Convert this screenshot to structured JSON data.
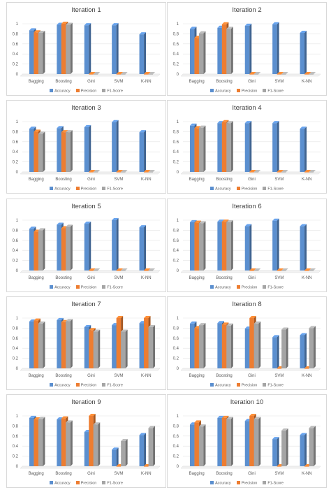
{
  "colors": {
    "Accuracy": "#5b8fcf",
    "Precision": "#ed7d31",
    "F1-Score": "#a5a5a5"
  },
  "chart_data": [
    {
      "type": "bar",
      "title": "Iteration 1",
      "categories": [
        "Bagging",
        "Boosting",
        "Gini",
        "SVM",
        "K-NN"
      ],
      "ylim": [
        0,
        1
      ],
      "yticks": [
        "0",
        "0.2",
        "0.4",
        "0.6",
        "0.8",
        "1"
      ],
      "legend_position": "bottom",
      "series": [
        {
          "name": "Accuracy",
          "values": [
            0.87,
            0.98,
            0.97,
            0.97,
            0.79
          ]
        },
        {
          "name": "Precision",
          "values": [
            0.83,
            1.0,
            0,
            0,
            0
          ]
        },
        {
          "name": "F1-Score",
          "values": [
            0.82,
            0.98,
            0,
            0,
            0
          ]
        }
      ]
    },
    {
      "type": "bar",
      "title": "Iteration 2",
      "categories": [
        "Bagging",
        "Boosting",
        "Gini",
        "SVM",
        "K-NN"
      ],
      "ylim": [
        0,
        1
      ],
      "yticks": [
        "0",
        "0.2",
        "0.4",
        "0.6",
        "0.8",
        "1"
      ],
      "legend_position": "bottom",
      "series": [
        {
          "name": "Accuracy",
          "values": [
            0.9,
            0.92,
            0.96,
            0.99,
            0.82
          ]
        },
        {
          "name": "Precision",
          "values": [
            0.72,
            0.99,
            0,
            0,
            0
          ]
        },
        {
          "name": "F1-Score",
          "values": [
            0.81,
            0.9,
            0,
            0,
            0
          ]
        }
      ]
    },
    {
      "type": "bar",
      "title": "Iteration 3",
      "categories": [
        "Bagging",
        "Boosting",
        "Gini",
        "SVM",
        "K-NN"
      ],
      "ylim": [
        0,
        1
      ],
      "yticks": [
        "0",
        "0.2",
        "0.4",
        "0.6",
        "0.8",
        "1"
      ],
      "legend_position": "bottom",
      "series": [
        {
          "name": "Accuracy",
          "values": [
            0.86,
            0.87,
            0.89,
            0.99,
            0.79
          ]
        },
        {
          "name": "Precision",
          "values": [
            0.8,
            0.79,
            0,
            0,
            0
          ]
        },
        {
          "name": "F1-Score",
          "values": [
            0.76,
            0.79,
            0,
            0,
            0
          ]
        }
      ]
    },
    {
      "type": "bar",
      "title": "Iteration 4",
      "categories": [
        "Bagging",
        "Boosting",
        "Gini",
        "SVM",
        "K-NN"
      ],
      "ylim": [
        0,
        1
      ],
      "yticks": [
        "0",
        "0.2",
        "0.4",
        "0.6",
        "0.8",
        "1"
      ],
      "legend_position": "bottom",
      "series": [
        {
          "name": "Accuracy",
          "values": [
            0.92,
            0.97,
            0.97,
            0.97,
            0.86
          ]
        },
        {
          "name": "Precision",
          "values": [
            0.87,
            0.99,
            0,
            0,
            0
          ]
        },
        {
          "name": "F1-Score",
          "values": [
            0.88,
            0.97,
            0,
            0,
            0
          ]
        }
      ]
    },
    {
      "type": "bar",
      "title": "Iteration 5",
      "categories": [
        "Bagging",
        "Boosting",
        "Gini",
        "SVM",
        "K-NN"
      ],
      "ylim": [
        0,
        1
      ],
      "yticks": [
        "0",
        "0.2",
        "0.4",
        "0.6",
        "0.8",
        "1"
      ],
      "legend_position": "bottom",
      "series": [
        {
          "name": "Accuracy",
          "values": [
            0.83,
            0.91,
            0.93,
            1.0,
            0.86
          ]
        },
        {
          "name": "Precision",
          "values": [
            0.77,
            0.84,
            0,
            0,
            0
          ]
        },
        {
          "name": "F1-Score",
          "values": [
            0.8,
            0.87,
            0,
            0,
            0
          ]
        }
      ]
    },
    {
      "type": "bar",
      "title": "Iteration 6",
      "categories": [
        "Bagging",
        "Boosting",
        "Gini",
        "SVM",
        "K-NN"
      ],
      "ylim": [
        0,
        1
      ],
      "yticks": [
        "0",
        "0.2",
        "0.4",
        "0.6",
        "0.8",
        "1"
      ],
      "legend_position": "bottom",
      "series": [
        {
          "name": "Accuracy",
          "values": [
            0.96,
            0.97,
            0.88,
            0.99,
            0.88
          ]
        },
        {
          "name": "Precision",
          "values": [
            0.95,
            0.97,
            0,
            0,
            0
          ]
        },
        {
          "name": "F1-Score",
          "values": [
            0.94,
            0.96,
            0,
            0,
            0
          ]
        }
      ]
    },
    {
      "type": "bar",
      "title": "Iteration 7",
      "categories": [
        "Bagging",
        "Boosting",
        "Gini",
        "SVM",
        "K-NN"
      ],
      "ylim": [
        0,
        1
      ],
      "yticks": [
        "0",
        "0.2",
        "0.4",
        "0.6",
        "0.8",
        "1"
      ],
      "legend_position": "bottom",
      "series": [
        {
          "name": "Accuracy",
          "values": [
            0.93,
            0.96,
            0.82,
            0.86,
            0.9
          ]
        },
        {
          "name": "Precision",
          "values": [
            0.95,
            0.92,
            0.76,
            1.0,
            1.0
          ]
        },
        {
          "name": "F1-Score",
          "values": [
            0.89,
            0.94,
            0.73,
            0.73,
            0.82
          ]
        }
      ]
    },
    {
      "type": "bar",
      "title": "Iteration 8",
      "categories": [
        "Bagging",
        "Boosting",
        "Gini",
        "SVM",
        "K-NN"
      ],
      "ylim": [
        0,
        1
      ],
      "yticks": [
        "0",
        "0.2",
        "0.4",
        "0.6",
        "0.8",
        "1"
      ],
      "legend_position": "bottom",
      "series": [
        {
          "name": "Accuracy",
          "values": [
            0.89,
            0.9,
            0.79,
            0.62,
            0.66
          ]
        },
        {
          "name": "Precision",
          "values": [
            0.8,
            0.87,
            1.0,
            0,
            0
          ]
        },
        {
          "name": "F1-Score",
          "values": [
            0.86,
            0.85,
            0.89,
            0.77,
            0.8
          ]
        }
      ]
    },
    {
      "type": "bar",
      "title": "Iteration 9",
      "categories": [
        "Bagging",
        "Boosting",
        "Gini",
        "SVM",
        "K-NN"
      ],
      "ylim": [
        0,
        1
      ],
      "yticks": [
        "0",
        "0.2",
        "0.4",
        "0.6",
        "0.8",
        "1"
      ],
      "legend_position": "bottom",
      "series": [
        {
          "name": "Accuracy",
          "values": [
            0.96,
            0.93,
            0.68,
            0.33,
            0.62
          ]
        },
        {
          "name": "Precision",
          "values": [
            0.93,
            0.95,
            1.0,
            0,
            0
          ]
        },
        {
          "name": "F1-Score",
          "values": [
            0.94,
            0.87,
            0.83,
            0.5,
            0.76
          ]
        }
      ]
    },
    {
      "type": "bar",
      "title": "Iteration 10",
      "categories": [
        "Bagging",
        "Boosting",
        "Gini",
        "SVM",
        "K-NN"
      ],
      "ylim": [
        0,
        1
      ],
      "yticks": [
        "0",
        "0.2",
        "0.4",
        "0.6",
        "0.8",
        "1"
      ],
      "legend_position": "bottom",
      "series": [
        {
          "name": "Accuracy",
          "values": [
            0.83,
            0.96,
            0.9,
            0.54,
            0.62
          ]
        },
        {
          "name": "Precision",
          "values": [
            0.87,
            0.96,
            1.0,
            0,
            0
          ]
        },
        {
          "name": "F1-Score",
          "values": [
            0.79,
            0.94,
            0.94,
            0.71,
            0.76
          ]
        }
      ]
    }
  ]
}
